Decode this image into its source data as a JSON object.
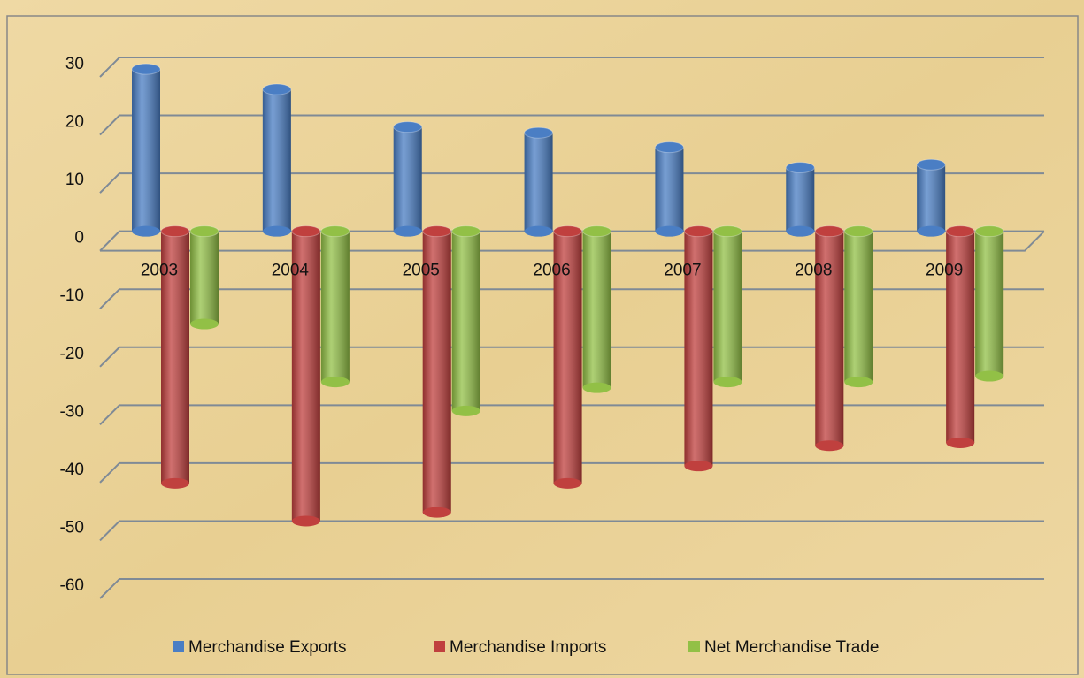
{
  "chart_data": {
    "type": "bar3d",
    "categories": [
      "2003",
      "2004",
      "2005",
      "2006",
      "2007",
      "2008",
      "2009"
    ],
    "series": [
      {
        "name": "Merchandise Exports",
        "color": "#4a7ec4",
        "values": [
          28,
          24.5,
          18,
          17,
          14.5,
          11,
          11.5
        ]
      },
      {
        "name": "Merchandise Imports",
        "color": "#c0403e",
        "values": [
          -43.5,
          -50,
          -48.5,
          -43.5,
          -40.5,
          -37,
          -36.5
        ]
      },
      {
        "name": "Net Merchandise Trade",
        "color": "#92c046",
        "values": [
          -16,
          -26,
          -31,
          -27,
          -26,
          -26,
          -25
        ]
      }
    ],
    "ylim": [
      -60,
      30
    ],
    "yticks": [
      -60,
      -50,
      -40,
      -30,
      -20,
      -10,
      0,
      10,
      20,
      30
    ],
    "grid": true,
    "legend": "bottom"
  }
}
